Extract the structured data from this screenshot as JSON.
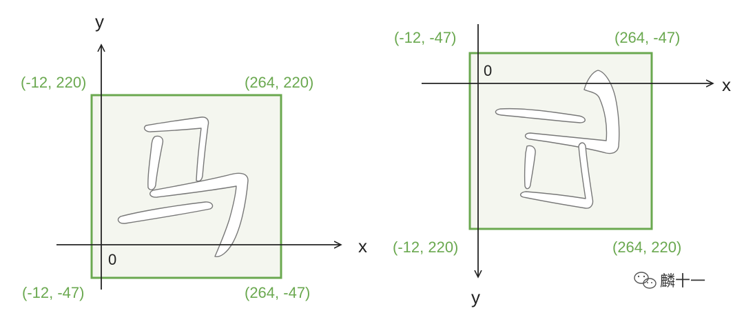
{
  "colors": {
    "accent_green": "#6aa84f",
    "box_fill": "#f4f6ef",
    "axis": "#222222",
    "glyph_stroke": "#777777",
    "glyph_fill": "#ffffff"
  },
  "left_panel": {
    "axis_y_label": "y",
    "axis_x_label": "x",
    "origin_label": "0",
    "corner_top_left": "(-12, 220)",
    "corner_top_right": "(264, 220)",
    "corner_bottom_left": "(-12, -47)",
    "corner_bottom_right": "(264, -47)",
    "glyph_name": "ma-character"
  },
  "right_panel": {
    "axis_y_label": "y",
    "axis_x_label": "x",
    "origin_label": "0",
    "corner_top_left": "(-12, -47)",
    "corner_top_right": "(264, -47)",
    "corner_bottom_left": "(-12, 220)",
    "corner_bottom_right": "(264, 220)",
    "glyph_name": "ma-character-flipped"
  },
  "watermark": {
    "icon": "wechat-icon",
    "text": "麟十一"
  }
}
